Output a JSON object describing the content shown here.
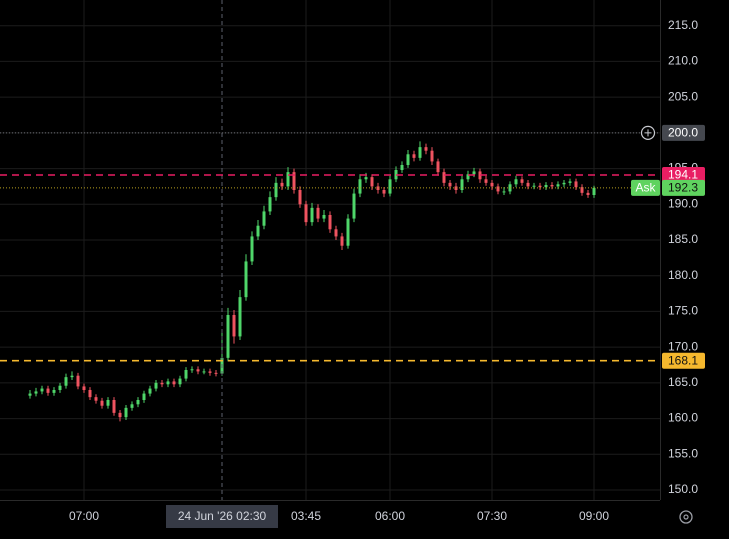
{
  "chart_data": {
    "type": "candlestick",
    "up_color": "#4fd66a",
    "down_color": "#ef5360",
    "grid": true,
    "ylim": [
      148.6,
      218.6
    ],
    "yticks": [
      {
        "value": 150,
        "label": "150.0"
      },
      {
        "value": 155,
        "label": "155.0"
      },
      {
        "value": 160,
        "label": "160.0"
      },
      {
        "value": 165,
        "label": "165.0"
      },
      {
        "value": 170,
        "label": "170.0"
      },
      {
        "value": 175,
        "label": "175.0"
      },
      {
        "value": 180,
        "label": "180.0"
      },
      {
        "value": 185,
        "label": "185.0"
      },
      {
        "value": 190,
        "label": "190.0"
      },
      {
        "value": 195,
        "label": "195.0"
      },
      {
        "value": 200,
        "label": "200.0"
      },
      {
        "value": 205,
        "label": "205.0"
      },
      {
        "value": 210,
        "label": "210.0"
      },
      {
        "value": 215,
        "label": "215.0"
      }
    ],
    "price_lines": [
      {
        "value": 200,
        "label": "200.0",
        "color": "#45484f",
        "line_color": "#6b6e75",
        "style": "dotted"
      },
      {
        "value": 194.1,
        "label": "194.1",
        "color": "#e91e63",
        "line_color": "#e91e63",
        "style": "dashed"
      },
      {
        "value": 192.3,
        "label": "192.3",
        "name": "Ask",
        "color": "#5fd35f",
        "line_color": "#b8a020",
        "style": "dotted"
      },
      {
        "value": 168.1,
        "label": "168.1",
        "color": "#f5b82e",
        "line_color": "#f5b82e",
        "style": "dashed"
      }
    ],
    "categories": [
      null,
      null,
      null,
      null,
      null,
      null,
      null,
      null,
      null,
      "07:00",
      null,
      null,
      null,
      null,
      null,
      null,
      null,
      null,
      null,
      null,
      null,
      null,
      null,
      null,
      null,
      null,
      null,
      null,
      null,
      null,
      null,
      null,
      "24 Jun '26 02:30",
      null,
      null,
      null,
      null,
      null,
      null,
      null,
      null,
      null,
      null,
      null,
      null,
      null,
      "03:45",
      null,
      null,
      null,
      null,
      null,
      null,
      null,
      null,
      null,
      null,
      null,
      null,
      null,
      "06:00",
      null,
      null,
      null,
      null,
      null,
      null,
      null,
      null,
      null,
      null,
      null,
      null,
      null,
      null,
      null,
      null,
      "07:30",
      null,
      null,
      null,
      null,
      null,
      null,
      null,
      null,
      null,
      null,
      null,
      null,
      null,
      null,
      null,
      null,
      "09:00"
    ],
    "ohlc": [
      [
        163.2,
        164.0,
        162.8,
        163.5
      ],
      [
        163.5,
        164.3,
        163.1,
        163.8
      ],
      [
        163.8,
        164.6,
        163.4,
        164.2
      ],
      [
        164.2,
        164.6,
        163.2,
        163.6
      ],
      [
        163.6,
        164.4,
        163.2,
        164.0
      ],
      [
        164.0,
        165.0,
        163.6,
        164.6
      ],
      [
        164.6,
        166.3,
        164.2,
        165.8
      ],
      [
        165.8,
        166.6,
        165.4,
        166.0
      ],
      [
        166.0,
        166.4,
        164.1,
        164.5
      ],
      [
        164.5,
        164.9,
        163.6,
        164.0
      ],
      [
        164.0,
        164.4,
        162.6,
        163.0
      ],
      [
        163.0,
        163.4,
        162.1,
        162.5
      ],
      [
        162.5,
        162.9,
        161.4,
        161.8
      ],
      [
        161.8,
        163.0,
        161.4,
        162.6
      ],
      [
        162.6,
        163.0,
        160.4,
        160.8
      ],
      [
        160.8,
        161.2,
        159.6,
        160.2
      ],
      [
        160.2,
        161.9,
        159.8,
        161.5
      ],
      [
        161.5,
        162.4,
        161.1,
        162.0
      ],
      [
        162.0,
        163.0,
        161.6,
        162.6
      ],
      [
        162.6,
        163.9,
        162.2,
        163.5
      ],
      [
        163.5,
        164.6,
        163.1,
        164.2
      ],
      [
        164.2,
        165.4,
        163.8,
        165.0
      ],
      [
        165.0,
        165.4,
        164.4,
        164.8
      ],
      [
        164.8,
        165.6,
        164.4,
        165.2
      ],
      [
        165.2,
        165.6,
        164.4,
        164.8
      ],
      [
        164.8,
        166.0,
        164.4,
        165.6
      ],
      [
        165.6,
        167.2,
        165.2,
        166.8
      ],
      [
        166.8,
        167.3,
        166.4,
        166.9
      ],
      [
        166.9,
        167.3,
        166.2,
        166.6
      ],
      [
        166.6,
        167.0,
        166.2,
        166.6
      ],
      [
        166.6,
        167.0,
        166.0,
        166.4
      ],
      [
        166.4,
        166.8,
        165.9,
        166.3
      ],
      [
        166.3,
        172.0,
        166.0,
        168.5
      ],
      [
        168.5,
        175.5,
        168.0,
        174.5
      ],
      [
        174.5,
        175.2,
        170.5,
        171.5
      ],
      [
        171.5,
        178.0,
        171.0,
        177.0
      ],
      [
        177.0,
        183.0,
        176.5,
        182.0
      ],
      [
        182.0,
        186.2,
        181.5,
        185.5
      ],
      [
        185.5,
        187.8,
        185.0,
        187.0
      ],
      [
        187.0,
        189.8,
        186.5,
        189.0
      ],
      [
        189.0,
        191.8,
        188.5,
        191.0
      ],
      [
        191.0,
        193.8,
        190.5,
        193.0
      ],
      [
        193.0,
        193.6,
        192.0,
        192.5
      ],
      [
        192.5,
        195.2,
        192.0,
        194.5
      ],
      [
        194.5,
        195.0,
        191.5,
        192.0
      ],
      [
        192.0,
        192.5,
        189.5,
        190.0
      ],
      [
        190.0,
        190.5,
        187.0,
        187.5
      ],
      [
        187.5,
        190.2,
        187.0,
        189.5
      ],
      [
        189.5,
        190.0,
        187.5,
        188.0
      ],
      [
        188.0,
        189.2,
        187.5,
        188.5
      ],
      [
        188.5,
        189.0,
        186.0,
        186.5
      ],
      [
        186.5,
        187.0,
        185.0,
        185.5
      ],
      [
        185.5,
        186.0,
        183.6,
        184.2
      ],
      [
        184.2,
        188.6,
        183.8,
        188.0
      ],
      [
        188.0,
        192.2,
        187.5,
        191.5
      ],
      [
        191.5,
        194.2,
        191.0,
        193.5
      ],
      [
        193.5,
        194.4,
        193.0,
        193.8
      ],
      [
        193.8,
        194.2,
        192.0,
        192.5
      ],
      [
        192.5,
        193.0,
        191.5,
        192.0
      ],
      [
        192.0,
        192.4,
        191.0,
        191.5
      ],
      [
        191.5,
        194.0,
        191.1,
        193.5
      ],
      [
        193.5,
        195.3,
        193.1,
        194.8
      ],
      [
        194.8,
        196.0,
        194.4,
        195.5
      ],
      [
        195.5,
        197.6,
        195.1,
        197.0
      ],
      [
        197.0,
        197.5,
        196.0,
        196.5
      ],
      [
        196.5,
        198.8,
        196.1,
        198.0
      ],
      [
        198.0,
        198.5,
        197.0,
        197.5
      ],
      [
        197.5,
        198.0,
        195.5,
        196.0
      ],
      [
        196.0,
        196.4,
        194.0,
        194.5
      ],
      [
        194.5,
        195.0,
        192.5,
        193.0
      ],
      [
        193.0,
        193.4,
        192.0,
        192.5
      ],
      [
        192.5,
        193.0,
        191.5,
        192.0
      ],
      [
        192.0,
        194.0,
        191.6,
        193.5
      ],
      [
        193.5,
        194.7,
        193.1,
        194.2
      ],
      [
        194.2,
        195.1,
        193.8,
        194.6
      ],
      [
        194.6,
        195.0,
        193.0,
        193.5
      ],
      [
        193.5,
        194.0,
        192.6,
        193.0
      ],
      [
        193.0,
        193.4,
        192.0,
        192.5
      ],
      [
        192.5,
        192.9,
        191.4,
        191.8
      ],
      [
        191.8,
        192.4,
        191.3,
        191.8
      ],
      [
        191.8,
        193.2,
        191.4,
        192.8
      ],
      [
        192.8,
        194.0,
        192.4,
        193.5
      ],
      [
        193.5,
        193.9,
        192.6,
        193.0
      ],
      [
        193.0,
        193.4,
        192.1,
        192.5
      ],
      [
        192.5,
        193.0,
        192.1,
        192.6
      ],
      [
        192.6,
        193.0,
        192.0,
        192.4
      ],
      [
        192.4,
        193.1,
        192.0,
        192.7
      ],
      [
        192.7,
        193.1,
        192.1,
        192.5
      ],
      [
        192.5,
        193.2,
        192.1,
        192.8
      ],
      [
        192.8,
        193.4,
        192.4,
        193.0
      ],
      [
        193.0,
        193.6,
        192.6,
        193.2
      ],
      [
        193.2,
        193.6,
        192.0,
        192.4
      ],
      [
        192.4,
        192.8,
        191.2,
        191.6
      ],
      [
        191.6,
        192.0,
        190.9,
        191.3
      ],
      [
        191.3,
        192.6,
        190.9,
        192.3
      ]
    ]
  }
}
